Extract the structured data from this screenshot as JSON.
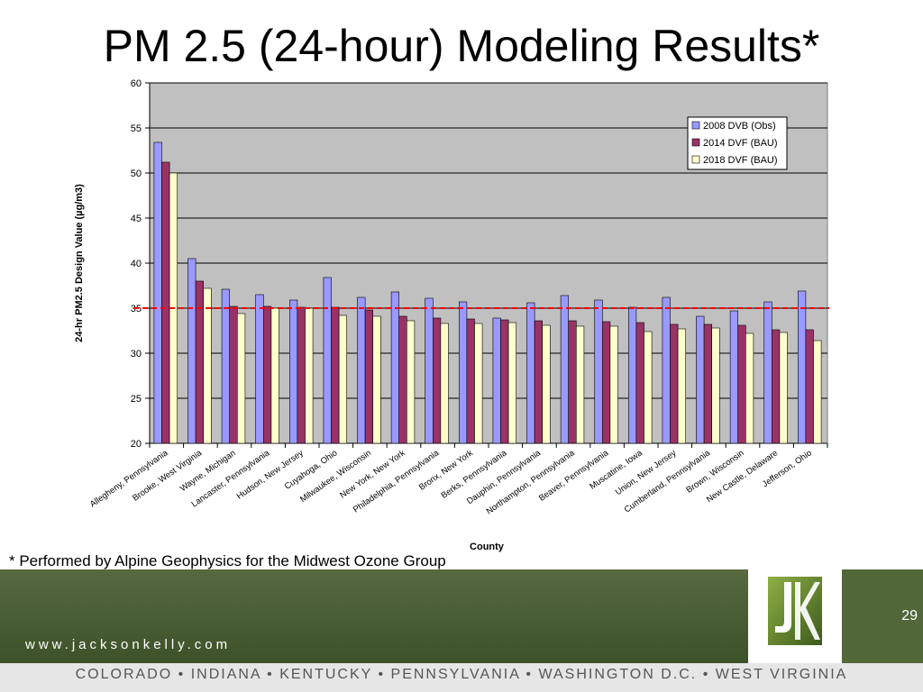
{
  "slide": {
    "title": "PM 2.5 (24-hour) Modeling Results*",
    "footnote": "* Performed by Alpine Geophysics for the Midwest Ozone Group",
    "page_number": "29",
    "website": "www.jacksonkelly.com",
    "states_line": "COLORADO • INDIANA • KENTUCKY • PENNSYLVANIA • WASHINGTON D.C. • WEST VIRGINIA",
    "logo_letters": "JK"
  },
  "colors": {
    "plot_bg": "#c0c0c0",
    "series": [
      "#9999ff",
      "#993366",
      "#ffffcc"
    ],
    "reference_line": "#ff0000",
    "footer_green": "#4a6033"
  },
  "chart_data": {
    "type": "bar",
    "title": "",
    "xlabel": "County",
    "ylabel": "24-hr PM2.5 Design Value (µg/m3)",
    "ylim": [
      20,
      60
    ],
    "yticks": [
      20,
      25,
      30,
      35,
      40,
      45,
      50,
      55,
      60
    ],
    "grid": true,
    "legend_position": "top-right",
    "reference_line": {
      "y": 35,
      "style": "dashed",
      "color": "#ff0000"
    },
    "categories": [
      "Allegheny, Pennsylvania",
      "Brooke, West Virginia",
      "Wayne, Michigan",
      "Lancaster, Pennsylvania",
      "Hudson, New Jersey",
      "Cuyahoga, Ohio",
      "Milwaukee, Wisconsin",
      "New York, New York",
      "Philadelphia, Pennsylvania",
      "Bronx, New York",
      "Berks, Pennsylvania",
      "Dauphin, Pennsylvania",
      "Northampton, Pennsylvania",
      "Beaver, Pennsylvania",
      "Muscatine, Iowa",
      "Union, New Jersey",
      "Cumberland, Pennsylvania",
      "Brown, Wisconsin",
      "New Castle, Delaware",
      "Jefferson, Ohio"
    ],
    "series": [
      {
        "name": "2008 DVB (Obs)",
        "values": [
          53.4,
          40.5,
          37.1,
          36.5,
          35.9,
          38.4,
          36.2,
          36.8,
          36.1,
          35.7,
          33.9,
          35.6,
          36.4,
          35.9,
          35.1,
          36.2,
          34.1,
          34.7,
          35.7,
          36.9
        ]
      },
      {
        "name": "2014 DVF (BAU)",
        "values": [
          51.2,
          38.0,
          35.2,
          35.2,
          35.1,
          35.1,
          34.8,
          34.1,
          33.9,
          33.8,
          33.7,
          33.6,
          33.6,
          33.5,
          33.4,
          33.2,
          33.2,
          33.1,
          32.6,
          32.6
        ]
      },
      {
        "name": "2018 DVF (BAU)",
        "values": [
          50.0,
          37.2,
          34.4,
          35.0,
          35.0,
          34.2,
          34.1,
          33.6,
          33.3,
          33.3,
          33.4,
          33.1,
          33.0,
          33.0,
          32.4,
          32.7,
          32.8,
          32.2,
          32.3,
          31.4
        ]
      }
    ]
  }
}
